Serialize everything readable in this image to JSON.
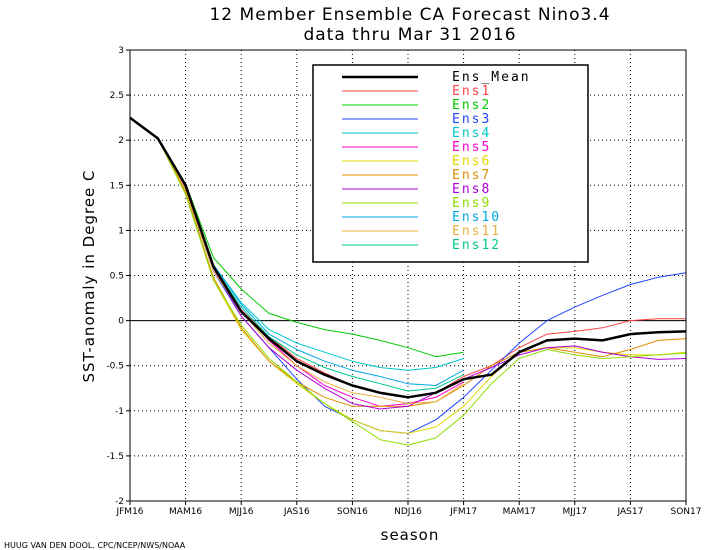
{
  "chart_data": {
    "type": "line",
    "title": "12 Member Ensemble CA Forecast Nino3.4",
    "subtitle": "data thru Mar 31 2016",
    "xlabel": "season",
    "ylabel": "SST-anomaly in Degree C",
    "credit": "HUUG VAN DEN DOOL. CPC/NCEP/NWS/NOAA",
    "ylim": [
      -2,
      3
    ],
    "y_ticks": [
      "-2",
      "-1.5",
      "-1",
      "-0.5",
      "0",
      "0.5",
      "1",
      "1.5",
      "2",
      "2.5",
      "3"
    ],
    "y_tick_values": [
      -2,
      -1.5,
      -1,
      -0.5,
      0,
      0.5,
      1,
      1.5,
      2,
      2.5,
      3
    ],
    "x_ticks": [
      "JFM16",
      "MAM16",
      "MJJ16",
      "JAS16",
      "SON16",
      "NDJ16",
      "JFM17",
      "MAM17",
      "MJJ17",
      "JAS17",
      "SON17"
    ],
    "x_tick_positions": [
      0,
      2,
      4,
      6,
      8,
      10,
      12,
      14,
      16,
      18,
      20
    ],
    "x_range": [
      0,
      20
    ],
    "grid": true,
    "legend_position": "top-right",
    "zero_line": true,
    "series": [
      {
        "name": "Ens_Mean",
        "color": "#000000",
        "width": 2.5,
        "x": [
          0,
          1,
          2,
          3,
          4,
          5,
          6,
          7,
          8,
          9,
          10,
          11,
          12,
          13,
          14,
          15,
          16,
          17,
          18,
          19,
          20
        ],
        "y": [
          2.25,
          2.02,
          1.5,
          0.6,
          0.1,
          -0.2,
          -0.45,
          -0.6,
          -0.72,
          -0.8,
          -0.85,
          -0.8,
          -0.65,
          -0.6,
          -0.35,
          -0.22,
          -0.2,
          -0.22,
          -0.15,
          -0.13,
          -0.12
        ]
      },
      {
        "name": "Ens1",
        "color": "#ff4444",
        "x": [
          0,
          1,
          2,
          3,
          4,
          5,
          6,
          7,
          8,
          9,
          10,
          11,
          12,
          13,
          14,
          15,
          16,
          17,
          18,
          19,
          20
        ],
        "y": [
          2.25,
          2.03,
          1.5,
          0.62,
          0.12,
          -0.18,
          -0.42,
          -0.58,
          -0.72,
          -0.8,
          -0.85,
          -0.8,
          -0.62,
          -0.5,
          -0.3,
          -0.15,
          -0.12,
          -0.08,
          0.0,
          0.02,
          0.02
        ]
      },
      {
        "name": "Ens2",
        "color": "#00cc00",
        "x": [
          0,
          1,
          2,
          3,
          4,
          5,
          6,
          7,
          8,
          9,
          10,
          11,
          12
        ],
        "y": [
          2.25,
          2.02,
          1.52,
          0.7,
          0.35,
          0.08,
          -0.02,
          -0.1,
          -0.15,
          -0.22,
          -0.3,
          -0.4,
          -0.35
        ]
      },
      {
        "name": "Ens3",
        "color": "#2244ff",
        "x": [
          0,
          1,
          2,
          3,
          4,
          5,
          6,
          7,
          8,
          9,
          10,
          11,
          12,
          13,
          14,
          15,
          16,
          17,
          18,
          19,
          20
        ],
        "y": [
          2.25,
          2.02,
          1.45,
          0.55,
          0.05,
          -0.3,
          -0.65,
          -0.95,
          -1.1,
          -1.22,
          -1.25,
          -1.1,
          -0.85,
          -0.55,
          -0.25,
          0.0,
          0.15,
          0.28,
          0.4,
          0.48,
          0.53
        ]
      },
      {
        "name": "Ens4",
        "color": "#00c8c8",
        "x": [
          0,
          1,
          2,
          3,
          4,
          5,
          6,
          7,
          8,
          9,
          10,
          11,
          12
        ],
        "y": [
          2.25,
          2.03,
          1.5,
          0.62,
          0.2,
          -0.1,
          -0.25,
          -0.35,
          -0.45,
          -0.52,
          -0.55,
          -0.52,
          -0.42
        ]
      },
      {
        "name": "Ens5",
        "color": "#ff00cc",
        "x": [
          0,
          1,
          2,
          3,
          4,
          5,
          6,
          7,
          8,
          9,
          10,
          11,
          12
        ],
        "y": [
          2.25,
          2.02,
          1.48,
          0.6,
          0.12,
          -0.22,
          -0.5,
          -0.72,
          -0.85,
          -0.95,
          -0.92,
          -0.85,
          -0.68
        ]
      },
      {
        "name": "Ens6",
        "color": "#e0d800",
        "x": [
          0,
          1,
          2,
          3,
          4,
          5,
          6,
          7,
          8,
          9,
          10,
          11,
          12,
          13,
          14,
          15,
          16,
          17,
          18,
          19,
          20
        ],
        "y": [
          2.25,
          2.02,
          1.42,
          0.45,
          -0.1,
          -0.45,
          -0.7,
          -0.92,
          -1.1,
          -1.22,
          -1.25,
          -1.18,
          -0.95,
          -0.62,
          -0.35,
          -0.3,
          -0.3,
          -0.35,
          -0.38,
          -0.38,
          -0.35
        ]
      },
      {
        "name": "Ens7",
        "color": "#e08c00",
        "x": [
          0,
          1,
          2,
          3,
          4,
          5,
          6,
          7,
          8,
          9,
          10,
          11,
          12,
          13,
          14,
          15,
          16,
          17,
          18,
          19,
          20
        ],
        "y": [
          2.25,
          2.02,
          1.42,
          0.48,
          -0.08,
          -0.45,
          -0.68,
          -0.85,
          -0.95,
          -0.95,
          -0.95,
          -0.9,
          -0.72,
          -0.5,
          -0.35,
          -0.3,
          -0.35,
          -0.4,
          -0.32,
          -0.22,
          -0.2
        ]
      },
      {
        "name": "Ens8",
        "color": "#b000d8",
        "x": [
          0,
          1,
          2,
          3,
          4,
          5,
          6,
          7,
          8,
          9,
          10,
          11,
          12,
          13,
          14,
          15,
          16,
          17,
          18,
          19,
          20
        ],
        "y": [
          2.25,
          2.02,
          1.48,
          0.58,
          0.05,
          -0.3,
          -0.55,
          -0.75,
          -0.92,
          -0.98,
          -0.95,
          -0.8,
          -0.65,
          -0.52,
          -0.38,
          -0.3,
          -0.28,
          -0.35,
          -0.4,
          -0.43,
          -0.42
        ]
      },
      {
        "name": "Ens9",
        "color": "#90dd00",
        "x": [
          0,
          1,
          2,
          3,
          4,
          5,
          6,
          7,
          8,
          9,
          10,
          11,
          12,
          13,
          14,
          15,
          16,
          17,
          18,
          19,
          20
        ],
        "y": [
          2.25,
          2.02,
          1.4,
          0.45,
          -0.05,
          -0.42,
          -0.68,
          -0.92,
          -1.12,
          -1.32,
          -1.38,
          -1.3,
          -1.05,
          -0.7,
          -0.42,
          -0.32,
          -0.38,
          -0.42,
          -0.4,
          -0.38,
          -0.36
        ]
      },
      {
        "name": "Ens10",
        "color": "#00a8e8",
        "x": [
          0,
          1,
          2,
          3,
          4,
          5,
          6,
          7,
          8,
          9,
          10,
          11,
          12
        ],
        "y": [
          2.25,
          2.03,
          1.5,
          0.62,
          0.18,
          -0.15,
          -0.32,
          -0.45,
          -0.55,
          -0.62,
          -0.7,
          -0.72,
          -0.55
        ]
      },
      {
        "name": "Ens11",
        "color": "#e8b040",
        "x": [
          0,
          1,
          2,
          3,
          4,
          5,
          6,
          7,
          8,
          9,
          10,
          11,
          12
        ],
        "y": [
          2.25,
          2.02,
          1.45,
          0.55,
          0.1,
          -0.25,
          -0.5,
          -0.68,
          -0.8,
          -0.85,
          -0.92,
          -0.9,
          -0.7
        ]
      },
      {
        "name": "Ens12",
        "color": "#00c890",
        "x": [
          0,
          1,
          2,
          3,
          4,
          5,
          6,
          7,
          8,
          9,
          10,
          11,
          12
        ],
        "y": [
          2.25,
          2.03,
          1.5,
          0.6,
          0.15,
          -0.18,
          -0.38,
          -0.52,
          -0.62,
          -0.7,
          -0.78,
          -0.75,
          -0.6
        ]
      }
    ]
  }
}
